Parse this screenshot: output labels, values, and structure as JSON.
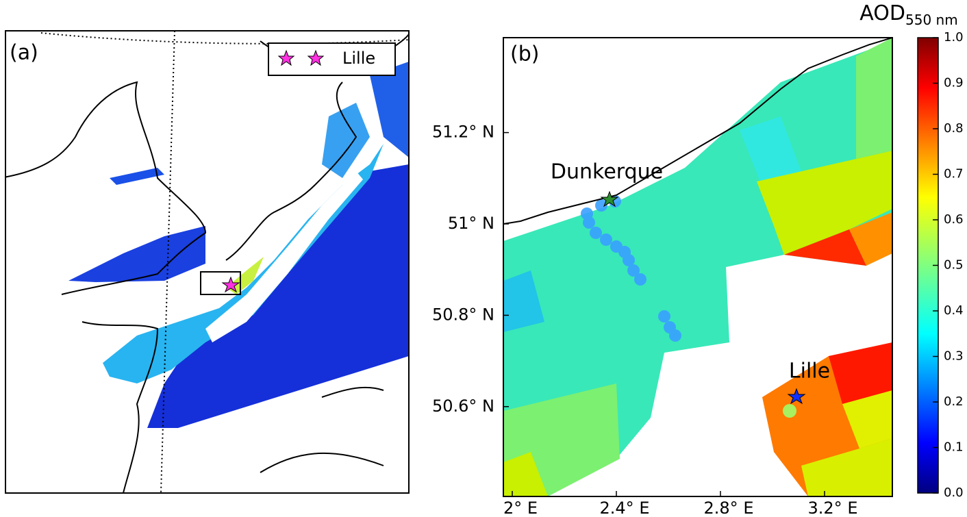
{
  "panel_a": {
    "label": "(a)",
    "legend_label": "Lille"
  },
  "panel_b": {
    "label": "(b)",
    "places": [
      {
        "name": "Dunkerque"
      },
      {
        "name": "Lille"
      }
    ],
    "yticks": [
      {
        "value": 51.2,
        "label": "51.2° N"
      },
      {
        "value": 51,
        "label": "51° N"
      },
      {
        "value": 50.8,
        "label": "50.8° N"
      },
      {
        "value": 50.6,
        "label": "50.6° N"
      }
    ],
    "xticks": [
      {
        "value": 2,
        "label": "2° E"
      },
      {
        "value": 2.4,
        "label": "2.4° E"
      },
      {
        "value": 2.8,
        "label": "2.8° E"
      },
      {
        "value": 3.2,
        "label": "3.2° E"
      }
    ]
  },
  "colorbar": {
    "title": "AOD",
    "subscript": "550 nm",
    "lim": [
      0,
      1
    ],
    "ticks": [
      {
        "value": 0,
        "label": "0.0"
      },
      0.1,
      0.2,
      0.3,
      0.4,
      0.5,
      0.6,
      0.7,
      0.8,
      0.9,
      {
        "value": 1,
        "label": "1.0"
      }
    ]
  }
}
